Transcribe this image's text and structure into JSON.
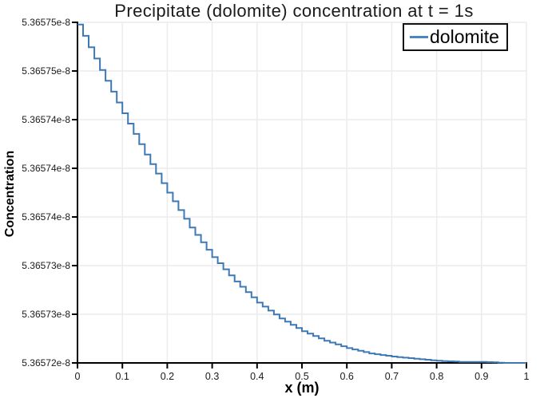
{
  "chart": {
    "title": "Precipitate (dolomite) concentration at t = 1s",
    "xlabel": "x (m)",
    "ylabel": "Concentration"
  },
  "chart_data": {
    "type": "line",
    "line_style": "steps",
    "title": "Precipitate (dolomite) concentration at t = 1s",
    "xlabel": "x (m)",
    "ylabel": "Concentration",
    "grid": true,
    "legend_position": "top-right",
    "xlim": [
      0,
      1
    ],
    "ylim": [
      5.36572e-08,
      5.3657522e-08
    ],
    "xtick_labels": [
      "0",
      "0.1",
      "0.2",
      "0.3",
      "0.4",
      "0.5",
      "0.6",
      "0.7",
      "0.8",
      "0.9",
      "1"
    ],
    "ytick_labels_top_to_bottom": [
      "5.36575e-8",
      "5.36575e-8",
      "5.36574e-8",
      "5.36574e-8",
      "5.36574e-8",
      "5.36573e-8",
      "5.36573e-8",
      "5.36572e-8"
    ],
    "n_cells": 80,
    "series": [
      {
        "name": "dolomite",
        "color": "#3d79b6",
        "x": [
          0.0,
          0.05,
          0.1,
          0.15,
          0.2,
          0.25,
          0.3,
          0.35,
          0.4,
          0.45,
          0.5,
          0.55,
          0.6,
          0.65,
          0.7,
          0.75,
          0.8,
          0.85,
          0.9,
          0.95,
          1.0
        ],
        "y": [
          5.365752e-08,
          5.3657477e-08,
          5.3657436e-08,
          5.3657397e-08,
          5.3657361e-08,
          5.3657328e-08,
          5.36573e-08,
          5.3657277e-08,
          5.3657257e-08,
          5.3657242e-08,
          5.365723e-08,
          5.3657221e-08,
          5.3657214e-08,
          5.3657209e-08,
          5.3657206e-08,
          5.3657204e-08,
          5.3657202e-08,
          5.3657201e-08,
          5.3657201e-08,
          5.36572e-08,
          5.36572e-08
        ]
      }
    ]
  },
  "colors": {
    "line": "#3d79b6",
    "legend_line": "#4d85c4",
    "grid": "#ececec",
    "axis": "#000000",
    "text": "#1a1a1a",
    "background": "#ffffff"
  }
}
